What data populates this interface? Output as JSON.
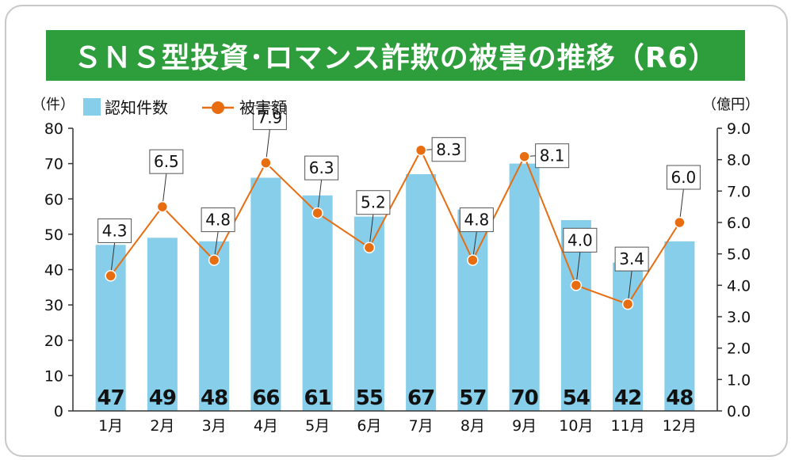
{
  "title": "ＳＮＳ型投資･ロマンス詐欺の被害の推移（R6）",
  "colors": {
    "title_bg": "#2e9e3c",
    "bar": "#87ceea",
    "line": "#e86d10",
    "axis": "#333333",
    "text": "#111111"
  },
  "chart_data": {
    "type": "bar+line",
    "categories": [
      "1月",
      "2月",
      "3月",
      "4月",
      "5月",
      "6月",
      "7月",
      "8月",
      "9月",
      "10月",
      "11月",
      "12月"
    ],
    "series": [
      {
        "name": "認知件数",
        "type": "bar",
        "axis": "left",
        "values": [
          47,
          49,
          48,
          66,
          61,
          55,
          67,
          57,
          70,
          54,
          42,
          48
        ]
      },
      {
        "name": "被害額",
        "type": "line",
        "axis": "right",
        "values": [
          4.3,
          6.5,
          4.8,
          7.9,
          6.3,
          5.2,
          8.3,
          4.8,
          8.1,
          4.0,
          3.4,
          6.0
        ],
        "labels": [
          "4.3",
          "6.5",
          "4.8",
          "7.9",
          "6.3",
          "5.2",
          "8.3",
          "4.8",
          "8.1",
          "4.0",
          "3.4",
          "6.0"
        ]
      }
    ],
    "y_left": {
      "unit_label": "（件）",
      "ylim": [
        0,
        80
      ],
      "ticks": [
        "0",
        "10",
        "20",
        "30",
        "40",
        "50",
        "60",
        "70",
        "80"
      ]
    },
    "y_right": {
      "unit_label": "（億円）",
      "ylim": [
        0,
        9
      ],
      "ticks": [
        "0.0",
        "1.0",
        "2.0",
        "3.0",
        "4.0",
        "5.0",
        "6.0",
        "7.0",
        "8.0",
        "9.0"
      ]
    },
    "legend_position": "top-left",
    "grid": false
  }
}
